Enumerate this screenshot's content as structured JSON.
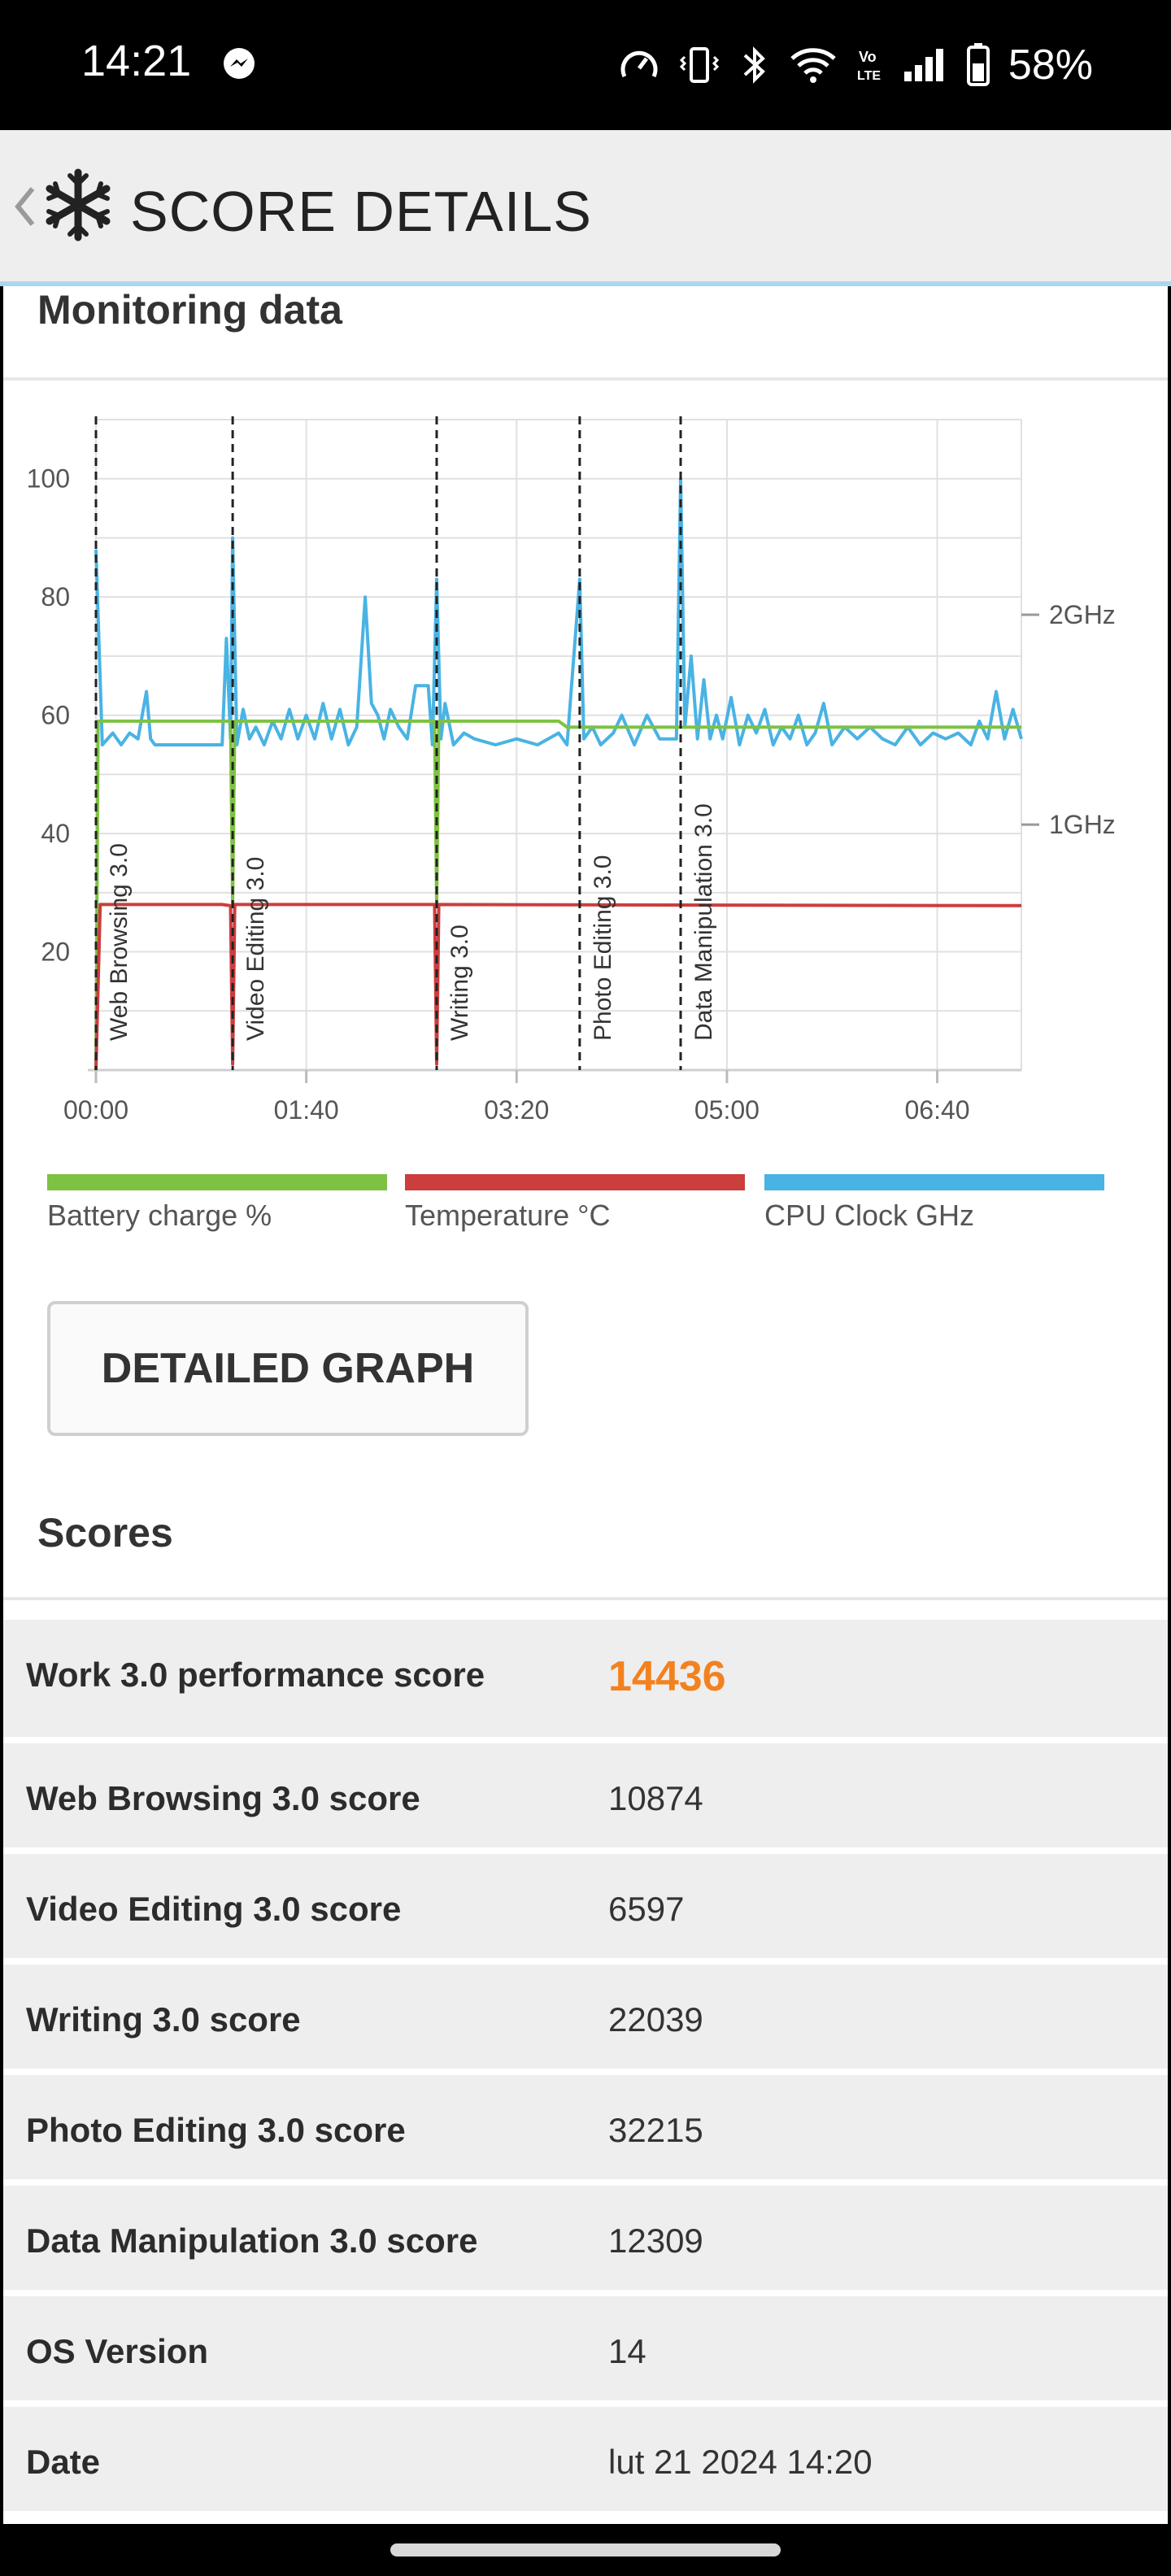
{
  "status_bar": {
    "time": "14:21",
    "battery": "58%",
    "icons": [
      "messenger-icon",
      "speedometer-icon",
      "vibrate-icon",
      "bluetooth-icon",
      "wifi-icon",
      "volte-icon",
      "signal-icon",
      "battery-icon"
    ]
  },
  "header": {
    "title": "SCORE DETAILS",
    "icons": [
      "back-chevron-icon",
      "snowflake-logo-icon"
    ]
  },
  "monitoring": {
    "title": "Monitoring data"
  },
  "chart_data": {
    "type": "line",
    "x_ticks": [
      "00:00",
      "01:40",
      "03:20",
      "05:00",
      "06:40"
    ],
    "x_range_seconds": [
      0,
      440
    ],
    "y_left_ticks": [
      "100",
      "80",
      "60",
      "40",
      "20"
    ],
    "y_left_range": [
      0,
      110
    ],
    "y_right_ticks": [
      "2GHz",
      "1GHz"
    ],
    "grid": true,
    "markers": [
      {
        "label": "Web Browsing 3.0",
        "t": 0
      },
      {
        "label": "Video Editing 3.0",
        "t": 65
      },
      {
        "label": "Writing 3.0",
        "t": 162
      },
      {
        "label": "Photo Editing 3.0",
        "t": 230
      },
      {
        "label": "Data Manipulation 3.0",
        "t": 278
      }
    ],
    "series": [
      {
        "name": "Battery charge %",
        "color": "#7dc242",
        "points": [
          [
            0,
            0
          ],
          [
            1,
            59
          ],
          [
            64,
            59
          ],
          [
            65,
            28
          ],
          [
            66,
            59
          ],
          [
            161,
            59
          ],
          [
            162,
            28
          ],
          [
            163,
            59
          ],
          [
            220,
            59
          ],
          [
            224,
            58
          ],
          [
            440,
            58
          ]
        ]
      },
      {
        "name": "Temperature °C",
        "color": "#cc3d3d",
        "points": [
          [
            0,
            0
          ],
          [
            2,
            28
          ],
          [
            60,
            28
          ],
          [
            64,
            27.8
          ],
          [
            65,
            1
          ],
          [
            66,
            28
          ],
          [
            161,
            28
          ],
          [
            162,
            1
          ],
          [
            163,
            28
          ],
          [
            440,
            27.8
          ]
        ]
      },
      {
        "name": "CPU Clock GHz",
        "color": "#49b3e4",
        "points": [
          [
            0,
            88
          ],
          [
            3,
            55
          ],
          [
            8,
            57
          ],
          [
            12,
            55
          ],
          [
            16,
            57
          ],
          [
            20,
            56
          ],
          [
            24,
            64
          ],
          [
            26,
            56
          ],
          [
            28,
            55
          ],
          [
            60,
            55
          ],
          [
            62,
            73
          ],
          [
            64,
            56
          ],
          [
            65,
            90
          ],
          [
            67,
            55
          ],
          [
            70,
            61
          ],
          [
            73,
            56
          ],
          [
            76,
            58
          ],
          [
            80,
            55
          ],
          [
            84,
            59
          ],
          [
            88,
            56
          ],
          [
            92,
            61
          ],
          [
            96,
            56
          ],
          [
            100,
            60
          ],
          [
            104,
            56
          ],
          [
            108,
            62
          ],
          [
            112,
            56
          ],
          [
            116,
            61
          ],
          [
            120,
            55
          ],
          [
            124,
            58
          ],
          [
            128,
            80
          ],
          [
            131,
            62
          ],
          [
            134,
            60
          ],
          [
            137,
            56
          ],
          [
            140,
            61
          ],
          [
            144,
            58
          ],
          [
            148,
            56
          ],
          [
            152,
            65
          ],
          [
            155,
            65
          ],
          [
            158,
            65
          ],
          [
            160,
            55
          ],
          [
            162,
            83
          ],
          [
            164,
            56
          ],
          [
            166,
            62
          ],
          [
            170,
            55
          ],
          [
            175,
            57
          ],
          [
            180,
            56
          ],
          [
            190,
            55
          ],
          [
            200,
            56
          ],
          [
            210,
            55
          ],
          [
            220,
            57
          ],
          [
            224,
            55
          ],
          [
            230,
            83
          ],
          [
            232,
            56
          ],
          [
            236,
            58
          ],
          [
            240,
            55
          ],
          [
            246,
            57
          ],
          [
            250,
            60
          ],
          [
            256,
            55
          ],
          [
            262,
            60
          ],
          [
            268,
            56
          ],
          [
            276,
            56
          ],
          [
            278,
            100
          ],
          [
            280,
            58
          ],
          [
            283,
            70
          ],
          [
            286,
            56
          ],
          [
            289,
            66
          ],
          [
            292,
            56
          ],
          [
            295,
            60
          ],
          [
            298,
            56
          ],
          [
            302,
            63
          ],
          [
            306,
            55
          ],
          [
            310,
            60
          ],
          [
            314,
            57
          ],
          [
            318,
            61
          ],
          [
            322,
            55
          ],
          [
            326,
            58
          ],
          [
            330,
            56
          ],
          [
            334,
            60
          ],
          [
            338,
            55
          ],
          [
            342,
            57
          ],
          [
            346,
            62
          ],
          [
            350,
            55
          ],
          [
            356,
            58
          ],
          [
            362,
            56
          ],
          [
            368,
            58
          ],
          [
            374,
            56
          ],
          [
            380,
            55
          ],
          [
            386,
            58
          ],
          [
            392,
            55
          ],
          [
            398,
            57
          ],
          [
            404,
            56
          ],
          [
            410,
            57
          ],
          [
            416,
            55
          ],
          [
            420,
            59
          ],
          [
            424,
            56
          ],
          [
            428,
            64
          ],
          [
            432,
            56
          ],
          [
            436,
            61
          ],
          [
            440,
            56
          ]
        ]
      }
    ]
  },
  "legend": [
    {
      "label": "Battery charge %",
      "color": "#7dc242"
    },
    {
      "label": "Temperature °C",
      "color": "#cc3d3d"
    },
    {
      "label": "CPU Clock GHz",
      "color": "#49b3e4"
    }
  ],
  "detailed_graph_button": "DETAILED GRAPH",
  "scores": {
    "title": "Scores",
    "rows": [
      {
        "label": "Work 3.0 performance score",
        "value": "14436"
      },
      {
        "label": "Web Browsing 3.0 score",
        "value": "10874"
      },
      {
        "label": "Video Editing 3.0 score",
        "value": "6597"
      },
      {
        "label": "Writing 3.0 score",
        "value": "22039"
      },
      {
        "label": "Photo Editing 3.0 score",
        "value": "32215"
      },
      {
        "label": "Data Manipulation 3.0 score",
        "value": "12309"
      },
      {
        "label": "OS Version",
        "value": "14"
      },
      {
        "label": "Date",
        "value": "lut 21 2024 14:20"
      }
    ]
  }
}
